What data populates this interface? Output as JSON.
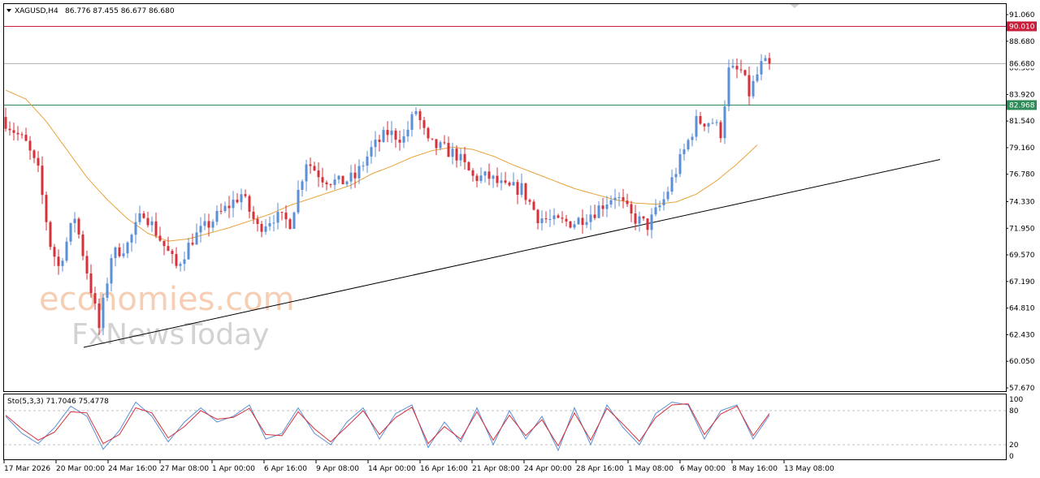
{
  "header": {
    "symbol_label": "XAGUSD,H4",
    "ohlc_label": "86.776 87.455 86.677 86.680"
  },
  "watermark": {
    "line1": "economies.com",
    "line2": "FxNewsToday"
  },
  "colors": {
    "bull": "#5b8fd6",
    "bear": "#d6303a",
    "ma": "#e8a33a",
    "resistance": "#c81e3c",
    "support": "#2e8b57",
    "trendline": "#000000",
    "stoch_main": "#5b8fd6",
    "stoch_signal": "#d6303a"
  },
  "chart_data": {
    "type": "candlestick",
    "symbol": "XAGUSD",
    "timeframe": "H4",
    "ylim": [
      57.67,
      91.06
    ],
    "y_ticks": [
      "91.060",
      "88.680",
      "86.300",
      "83.920",
      "81.540",
      "79.160",
      "76.780",
      "74.330",
      "71.950",
      "69.570",
      "67.190",
      "64.810",
      "62.430",
      "60.050",
      "57.670"
    ],
    "x_ticks": [
      "17 Mar 2026",
      "20 Mar 00:00",
      "24 Mar 16:00",
      "27 Mar 08:00",
      "1 Apr 00:00",
      "6 Apr 16:00",
      "9 Apr 08:00",
      "14 Apr 00:00",
      "16 Apr 16:00",
      "21 Apr 08:00",
      "24 Apr 00:00",
      "28 Apr 16:00",
      "1 May 08:00",
      "6 May 00:00",
      "8 May 16:00",
      "13 May 08:00"
    ],
    "last_price": 86.68,
    "current_price_label": "86.680",
    "resistance_level": 90.01,
    "resistance_label": "90.010",
    "support_level": 82.968,
    "support_label": "82.968",
    "trendline": {
      "from": [
        0,
        61.3
      ],
      "to": [
        200,
        78.1
      ]
    },
    "close_path": [
      [
        0,
        81.5
      ],
      [
        5,
        79.5
      ],
      [
        8,
        77.0
      ],
      [
        11,
        70.5
      ],
      [
        13,
        68.5
      ],
      [
        17,
        73.0
      ],
      [
        21,
        66.5
      ],
      [
        23,
        63.0
      ],
      [
        26,
        69.5
      ],
      [
        30,
        70.5
      ],
      [
        34,
        73.5
      ],
      [
        38,
        71.0
      ],
      [
        42,
        68.5
      ],
      [
        46,
        71.0
      ],
      [
        52,
        73.0
      ],
      [
        58,
        75.0
      ],
      [
        62,
        72.0
      ],
      [
        66,
        73.0
      ],
      [
        70,
        72.5
      ],
      [
        74,
        78.0
      ],
      [
        78,
        76.5
      ],
      [
        82,
        76.0
      ],
      [
        86,
        76.5
      ],
      [
        90,
        79.0
      ],
      [
        94,
        80.5
      ],
      [
        98,
        80.0
      ],
      [
        101,
        82.5
      ],
      [
        104,
        79.5
      ],
      [
        108,
        79.0
      ],
      [
        111,
        78.5
      ],
      [
        115,
        76.5
      ],
      [
        119,
        76.5
      ],
      [
        123,
        75.5
      ],
      [
        127,
        75.5
      ],
      [
        131,
        73.0
      ],
      [
        135,
        72.5
      ],
      [
        140,
        72.5
      ],
      [
        145,
        73.5
      ],
      [
        150,
        75.0
      ],
      [
        154,
        73.0
      ],
      [
        158,
        72.2
      ],
      [
        162,
        74.5
      ],
      [
        166,
        78.0
      ],
      [
        170,
        81.5
      ],
      [
        174,
        81.5
      ],
      [
        176,
        80.5
      ],
      [
        178,
        86.0
      ],
      [
        181,
        86.0
      ],
      [
        183,
        84.0
      ],
      [
        186,
        86.5
      ],
      [
        188,
        86.68
      ]
    ],
    "ma_path": [
      [
        0,
        84.3
      ],
      [
        5,
        83.5
      ],
      [
        10,
        81.5
      ],
      [
        15,
        79.0
      ],
      [
        20,
        76.5
      ],
      [
        25,
        74.5
      ],
      [
        30,
        72.8
      ],
      [
        35,
        71.5
      ],
      [
        40,
        70.8
      ],
      [
        45,
        71.0
      ],
      [
        50,
        71.5
      ],
      [
        55,
        72.0
      ],
      [
        60,
        72.6
      ],
      [
        65,
        73.2
      ],
      [
        70,
        74.0
      ],
      [
        75,
        74.6
      ],
      [
        80,
        75.2
      ],
      [
        85,
        75.8
      ],
      [
        90,
        76.8
      ],
      [
        95,
        77.5
      ],
      [
        100,
        78.3
      ],
      [
        105,
        78.9
      ],
      [
        110,
        79.2
      ],
      [
        115,
        79.0
      ],
      [
        120,
        78.4
      ],
      [
        125,
        77.6
      ],
      [
        130,
        76.9
      ],
      [
        135,
        76.2
      ],
      [
        140,
        75.5
      ],
      [
        145,
        75.0
      ],
      [
        150,
        74.5
      ],
      [
        155,
        74.2
      ],
      [
        160,
        74.1
      ],
      [
        165,
        74.3
      ],
      [
        170,
        75.0
      ],
      [
        175,
        76.2
      ],
      [
        180,
        77.7
      ],
      [
        185,
        79.4
      ]
    ],
    "stochastic": {
      "label": "Sto(5,3,3) 71.7046 75.4778",
      "k": 71.7046,
      "d": 75.4778,
      "ylim": [
        0,
        100
      ],
      "y_ticks": [
        "100",
        "80",
        "20",
        "0"
      ],
      "levels": [
        80,
        20
      ],
      "k_path": [
        [
          0,
          70
        ],
        [
          4,
          40
        ],
        [
          8,
          22
        ],
        [
          12,
          50
        ],
        [
          16,
          88
        ],
        [
          20,
          70
        ],
        [
          24,
          12
        ],
        [
          28,
          45
        ],
        [
          32,
          95
        ],
        [
          36,
          70
        ],
        [
          40,
          25
        ],
        [
          44,
          60
        ],
        [
          48,
          85
        ],
        [
          52,
          60
        ],
        [
          56,
          70
        ],
        [
          60,
          90
        ],
        [
          64,
          30
        ],
        [
          68,
          40
        ],
        [
          72,
          85
        ],
        [
          76,
          40
        ],
        [
          80,
          20
        ],
        [
          84,
          60
        ],
        [
          88,
          85
        ],
        [
          92,
          30
        ],
        [
          96,
          75
        ],
        [
          100,
          90
        ],
        [
          104,
          15
        ],
        [
          108,
          60
        ],
        [
          112,
          25
        ],
        [
          116,
          85
        ],
        [
          120,
          20
        ],
        [
          124,
          80
        ],
        [
          128,
          30
        ],
        [
          132,
          70
        ],
        [
          136,
          10
        ],
        [
          140,
          85
        ],
        [
          144,
          20
        ],
        [
          148,
          90
        ],
        [
          152,
          50
        ],
        [
          156,
          20
        ],
        [
          160,
          75
        ],
        [
          164,
          95
        ],
        [
          168,
          90
        ],
        [
          172,
          30
        ],
        [
          176,
          80
        ],
        [
          180,
          90
        ],
        [
          184,
          30
        ],
        [
          188,
          72
        ]
      ],
      "d_path": [
        [
          0,
          72
        ],
        [
          4,
          48
        ],
        [
          8,
          28
        ],
        [
          12,
          42
        ],
        [
          16,
          78
        ],
        [
          20,
          76
        ],
        [
          24,
          22
        ],
        [
          28,
          38
        ],
        [
          32,
          85
        ],
        [
          36,
          76
        ],
        [
          40,
          32
        ],
        [
          44,
          52
        ],
        [
          48,
          80
        ],
        [
          52,
          65
        ],
        [
          56,
          68
        ],
        [
          60,
          84
        ],
        [
          64,
          38
        ],
        [
          68,
          36
        ],
        [
          72,
          78
        ],
        [
          76,
          48
        ],
        [
          80,
          25
        ],
        [
          84,
          52
        ],
        [
          88,
          80
        ],
        [
          92,
          38
        ],
        [
          96,
          68
        ],
        [
          100,
          86
        ],
        [
          104,
          22
        ],
        [
          108,
          52
        ],
        [
          112,
          30
        ],
        [
          116,
          78
        ],
        [
          120,
          28
        ],
        [
          124,
          72
        ],
        [
          128,
          36
        ],
        [
          132,
          64
        ],
        [
          136,
          18
        ],
        [
          140,
          76
        ],
        [
          144,
          28
        ],
        [
          148,
          84
        ],
        [
          152,
          56
        ],
        [
          156,
          26
        ],
        [
          160,
          68
        ],
        [
          164,
          90
        ],
        [
          168,
          92
        ],
        [
          172,
          38
        ],
        [
          176,
          74
        ],
        [
          180,
          88
        ],
        [
          184,
          36
        ],
        [
          188,
          75
        ]
      ]
    }
  }
}
